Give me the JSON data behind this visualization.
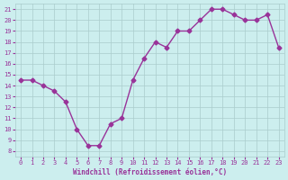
{
  "x": [
    0,
    1,
    2,
    3,
    4,
    5,
    6,
    7,
    8,
    9,
    10,
    11,
    12,
    13,
    14,
    15,
    16,
    17,
    18,
    19,
    20,
    21,
    22,
    23
  ],
  "y": [
    14.5,
    14.5,
    14.0,
    13.5,
    12.5,
    10.0,
    8.5,
    8.5,
    10.5,
    11.0,
    14.5,
    16.5,
    18.0,
    17.5,
    19.0,
    19.0,
    20.0,
    21.0,
    21.0,
    20.5,
    20.0,
    20.0,
    20.5,
    17.5
  ],
  "xlim": [
    -0.5,
    23.5
  ],
  "ylim": [
    7.5,
    21.5
  ],
  "yticks": [
    8,
    9,
    10,
    11,
    12,
    13,
    14,
    15,
    16,
    17,
    18,
    19,
    20,
    21
  ],
  "xticks": [
    0,
    1,
    2,
    3,
    4,
    5,
    6,
    7,
    8,
    9,
    10,
    11,
    12,
    13,
    14,
    15,
    16,
    17,
    18,
    19,
    20,
    21,
    22,
    23
  ],
  "xlabel": "Windchill (Refroidissement éolien,°C)",
  "line_color": "#993399",
  "marker_color": "#993399",
  "bg_color": "#cceeee",
  "grid_color": "#aacccc",
  "title_color": "#993399",
  "axis_label_color": "#993399",
  "tick_label_color": "#993399"
}
